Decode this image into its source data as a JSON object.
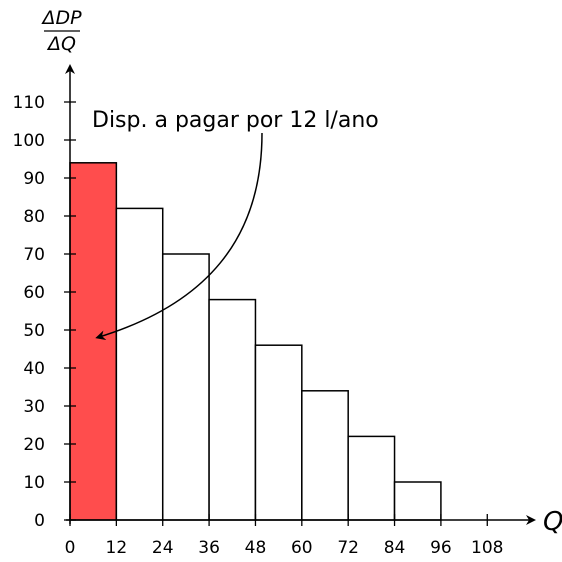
{
  "chart_data": {
    "type": "bar",
    "title": "",
    "xlabel": "Q",
    "ylabel": {
      "numerator": "ΔDP",
      "denominator": "ΔQ"
    },
    "xlim": [
      0,
      120
    ],
    "ylim": [
      0,
      120
    ],
    "x_ticks": [
      0,
      12,
      24,
      36,
      48,
      60,
      72,
      84,
      96,
      108
    ],
    "y_ticks": [
      0,
      10,
      20,
      30,
      40,
      50,
      60,
      70,
      80,
      90,
      100,
      110
    ],
    "bar_width": 12,
    "bins": [
      {
        "x_start": 0,
        "x_end": 12,
        "value": 94,
        "highlight": true
      },
      {
        "x_start": 12,
        "x_end": 24,
        "value": 82,
        "highlight": false
      },
      {
        "x_start": 24,
        "x_end": 36,
        "value": 70,
        "highlight": false
      },
      {
        "x_start": 36,
        "x_end": 48,
        "value": 58,
        "highlight": false
      },
      {
        "x_start": 48,
        "x_end": 60,
        "value": 46,
        "highlight": false
      },
      {
        "x_start": 60,
        "x_end": 72,
        "value": 34,
        "highlight": false
      },
      {
        "x_start": 72,
        "x_end": 84,
        "value": 22,
        "highlight": false
      },
      {
        "x_start": 84,
        "x_end": 96,
        "value": 10,
        "highlight": false
      }
    ],
    "annotation": {
      "text": "Disp. a pagar por 12 l/ano",
      "target_x": 6,
      "target_y": 48
    },
    "colors": {
      "highlight": "#ff4d4d",
      "bar": "#ffffff",
      "stroke": "#000000"
    },
    "grid": false
  }
}
